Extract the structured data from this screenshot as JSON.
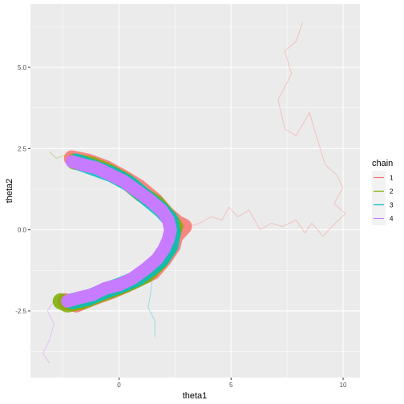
{
  "chart_data": {
    "type": "line",
    "title": "",
    "xlabel": "theta1",
    "ylabel": "theta2",
    "xlim": [
      -3.95,
      10.75
    ],
    "ylim": [
      -4.55,
      6.95
    ],
    "x_ticks": [
      {
        "value": 0,
        "label": "0"
      },
      {
        "value": 5,
        "label": "5"
      },
      {
        "value": 10,
        "label": "10"
      }
    ],
    "y_ticks": [
      {
        "value": -2.5,
        "label": "-2.5"
      },
      {
        "value": 0,
        "label": "0.0"
      },
      {
        "value": 2.5,
        "label": "2.5"
      },
      {
        "value": 5,
        "label": "5.0"
      }
    ],
    "grid": true,
    "legend": {
      "title": "chain",
      "position": "right"
    },
    "series": [
      {
        "name": "1",
        "color": "#F8766D",
        "warmup_path": [
          [
            8.2,
            6.4
          ],
          [
            7.9,
            5.8
          ],
          [
            7.4,
            5.5
          ],
          [
            7.7,
            4.8
          ],
          [
            7.1,
            4.0
          ],
          [
            7.4,
            3.1
          ],
          [
            7.9,
            2.9
          ],
          [
            8.5,
            3.6
          ],
          [
            8.8,
            2.9
          ],
          [
            9.2,
            2.0
          ],
          [
            9.7,
            1.7
          ],
          [
            10.0,
            1.3
          ],
          [
            9.6,
            0.8
          ],
          [
            10.1,
            0.5
          ],
          [
            9.5,
            0.1
          ],
          [
            9.1,
            -0.2
          ],
          [
            8.6,
            0.2
          ],
          [
            8.3,
            -0.1
          ],
          [
            7.9,
            0.3
          ],
          [
            7.3,
            0.1
          ],
          [
            6.8,
            0.2
          ],
          [
            6.3,
            0.0
          ],
          [
            5.8,
            0.6
          ],
          [
            5.3,
            0.4
          ],
          [
            4.9,
            0.7
          ],
          [
            4.6,
            0.3
          ],
          [
            4.1,
            0.4
          ],
          [
            3.6,
            0.2
          ],
          [
            3.1,
            0.1
          ]
        ],
        "path": [
          [
            -2.1,
            2.2
          ],
          [
            -1.4,
            2.1
          ],
          [
            -0.6,
            1.9
          ],
          [
            0.2,
            1.6
          ],
          [
            0.9,
            1.3
          ],
          [
            1.6,
            0.9
          ],
          [
            2.1,
            0.5
          ],
          [
            2.6,
            0.2
          ],
          [
            2.9,
            0.1
          ],
          [
            2.5,
            -0.2
          ],
          [
            2.4,
            -0.5
          ],
          [
            2.0,
            -0.9
          ],
          [
            1.5,
            -1.3
          ],
          [
            0.9,
            -1.5
          ],
          [
            0.3,
            -1.7
          ],
          [
            -0.4,
            -1.9
          ],
          [
            -1.2,
            -2.1
          ],
          [
            -1.9,
            -2.3
          ],
          [
            -2.4,
            -2.2
          ]
        ]
      },
      {
        "name": "2",
        "color": "#7CAE00",
        "warmup_path": [
          [
            -3.1,
            2.4
          ],
          [
            -2.8,
            2.2
          ],
          [
            -2.4,
            2.3
          ],
          [
            -1.9,
            2.1
          ],
          [
            -1.3,
            2.0
          ]
        ],
        "path": [
          [
            -2.0,
            2.1
          ],
          [
            -1.2,
            2.0
          ],
          [
            -0.5,
            1.8
          ],
          [
            0.3,
            1.5
          ],
          [
            1.0,
            1.1
          ],
          [
            1.7,
            0.8
          ],
          [
            2.2,
            0.4
          ],
          [
            2.5,
            0.1
          ],
          [
            2.3,
            -0.3
          ],
          [
            2.2,
            -0.6
          ],
          [
            1.8,
            -1.0
          ],
          [
            1.2,
            -1.4
          ],
          [
            0.6,
            -1.6
          ],
          [
            -0.1,
            -1.8
          ],
          [
            -0.9,
            -2.0
          ],
          [
            -1.6,
            -2.2
          ],
          [
            -2.3,
            -2.3
          ],
          [
            -2.6,
            -2.2
          ]
        ]
      },
      {
        "name": "3",
        "color": "#00BFC4",
        "warmup_path": [
          [
            1.5,
            -1.4
          ],
          [
            1.4,
            -2.0
          ],
          [
            1.3,
            -2.4
          ],
          [
            1.6,
            -2.8
          ],
          [
            1.6,
            -3.3
          ]
        ],
        "path": [
          [
            -1.9,
            2.1
          ],
          [
            -1.1,
            1.9
          ],
          [
            -0.3,
            1.7
          ],
          [
            0.5,
            1.4
          ],
          [
            1.2,
            1.0
          ],
          [
            1.9,
            0.6
          ],
          [
            2.3,
            0.3
          ],
          [
            2.4,
            -0.1
          ],
          [
            2.3,
            -0.5
          ],
          [
            1.9,
            -0.9
          ],
          [
            1.4,
            -1.2
          ],
          [
            0.8,
            -1.5
          ],
          [
            0.1,
            -1.7
          ],
          [
            -0.7,
            -1.9
          ],
          [
            -1.4,
            -2.1
          ],
          [
            -2.1,
            -2.2
          ]
        ]
      },
      {
        "name": "4",
        "color": "#C77CFF",
        "warmup_path": [
          [
            -2.5,
            -2.3
          ],
          [
            -2.9,
            -2.2
          ],
          [
            -3.2,
            -2.5
          ],
          [
            -2.9,
            -2.9
          ],
          [
            -3.1,
            -3.4
          ],
          [
            -3.4,
            -3.8
          ],
          [
            -3.1,
            -4.1
          ]
        ],
        "path": [
          [
            -2.1,
            2.1
          ],
          [
            -1.6,
            2.0
          ],
          [
            -1.0,
            1.9
          ],
          [
            -0.4,
            1.7
          ],
          [
            0.2,
            1.5
          ],
          [
            0.8,
            1.2
          ],
          [
            1.4,
            0.9
          ],
          [
            1.9,
            0.6
          ],
          [
            2.2,
            0.3
          ],
          [
            2.3,
            0.0
          ],
          [
            2.2,
            -0.3
          ],
          [
            2.0,
            -0.6
          ],
          [
            1.7,
            -0.9
          ],
          [
            1.2,
            -1.2
          ],
          [
            0.6,
            -1.5
          ],
          [
            0.0,
            -1.7
          ],
          [
            -0.6,
            -1.8
          ],
          [
            -1.2,
            -2.0
          ],
          [
            -1.8,
            -2.1
          ],
          [
            -2.3,
            -2.2
          ]
        ]
      }
    ]
  }
}
